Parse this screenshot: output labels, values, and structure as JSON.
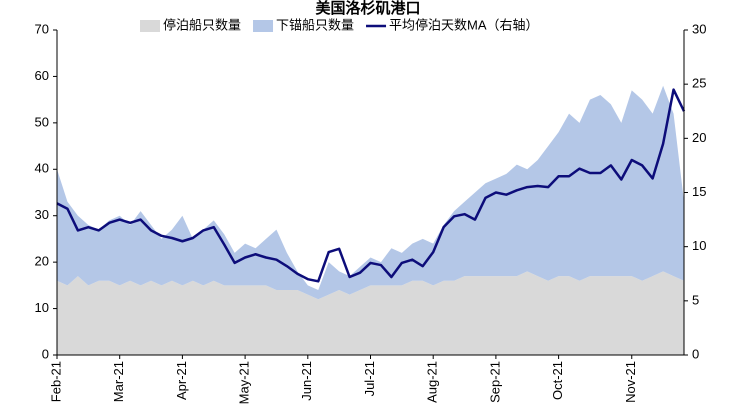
{
  "chart_data": {
    "type": "stacked_area_line",
    "title": "美国洛杉矶港口",
    "categories": [
      "Feb-21",
      null,
      null,
      null,
      null,
      null,
      "Mar-21",
      null,
      null,
      null,
      null,
      null,
      "Apr-21",
      null,
      null,
      null,
      null,
      null,
      "May-21",
      null,
      null,
      null,
      null,
      null,
      "Jun-21",
      null,
      null,
      null,
      null,
      null,
      "Jul-21",
      null,
      null,
      null,
      null,
      null,
      "Aug-21",
      null,
      null,
      null,
      null,
      null,
      "Sep-21",
      null,
      null,
      null,
      null,
      null,
      "Oct-21",
      null,
      null,
      null,
      null,
      null,
      null,
      "Nov-21",
      null,
      null,
      null,
      null,
      null
    ],
    "series": [
      {
        "name": "停泊船只数量",
        "color": "#d9d9d9",
        "values": [
          16,
          15,
          17,
          15,
          16,
          16,
          15,
          16,
          15,
          16,
          15,
          16,
          15,
          16,
          15,
          16,
          15,
          15,
          15,
          15,
          15,
          14,
          14,
          14,
          13,
          12,
          13,
          14,
          13,
          14,
          15,
          15,
          15,
          15,
          16,
          16,
          15,
          16,
          16,
          17,
          17,
          17,
          17,
          17,
          17,
          18,
          17,
          16,
          17,
          17,
          16,
          17,
          17,
          17,
          17,
          17,
          16,
          17,
          18,
          17,
          16
        ]
      },
      {
        "name": "下锚船只数量",
        "color": "#b4c7e7",
        "values": [
          24,
          18,
          13,
          13,
          11,
          13,
          15,
          12,
          16,
          12,
          10,
          11,
          15,
          9,
          12,
          13,
          11,
          7,
          9,
          8,
          10,
          13,
          8,
          4,
          2,
          2,
          7,
          4,
          4,
          5,
          6,
          5,
          8,
          7,
          8,
          9,
          9,
          12,
          15,
          16,
          18,
          20,
          21,
          22,
          24,
          22,
          25,
          29,
          31,
          35,
          34,
          38,
          39,
          37,
          33,
          40,
          39,
          35,
          40,
          35,
          17
        ]
      },
      {
        "name": "平均停泊天数MA（右轴）",
        "color": "#0d0d7a",
        "axis": "y2",
        "values": [
          14,
          13.5,
          11.5,
          11.8,
          11.5,
          12.2,
          12.5,
          12.2,
          12.5,
          11.5,
          11,
          10.8,
          10.5,
          10.8,
          11.5,
          11.8,
          10.2,
          8.5,
          9,
          9.3,
          9,
          8.8,
          8.2,
          7.5,
          7,
          6.8,
          9.5,
          9.8,
          7.2,
          7.6,
          8.5,
          8.3,
          7.2,
          8.5,
          8.8,
          8.2,
          9.5,
          11.8,
          12.8,
          13,
          12.5,
          14.5,
          15,
          14.8,
          15.2,
          15.5,
          15.6,
          15.5,
          16.5,
          16.5,
          17.2,
          16.8,
          16.8,
          17.5,
          16.2,
          18,
          17.5,
          16.3,
          19.5,
          24.5,
          22.5
        ]
      }
    ],
    "ylim": [
      0,
      70
    ],
    "yticks": [
      0,
      10,
      20,
      30,
      40,
      50,
      60,
      70
    ],
    "y2lim": [
      0,
      30
    ],
    "y2ticks": [
      0,
      5,
      10,
      15,
      20,
      25,
      30
    ]
  }
}
